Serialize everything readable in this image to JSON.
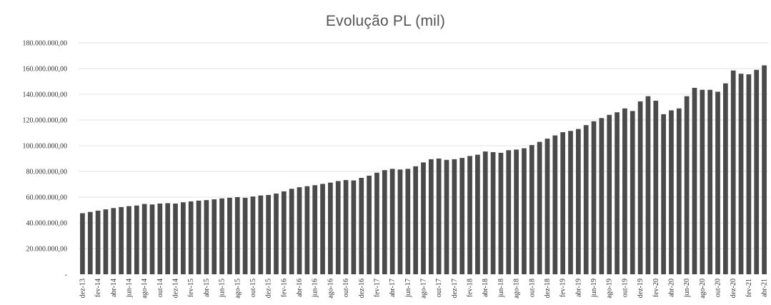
{
  "chart_data": {
    "type": "bar",
    "title": "Evolução PL (mil)",
    "xlabel": "",
    "ylabel": "",
    "ylim": [
      0,
      180000000
    ],
    "grid": true,
    "legend": "none",
    "bar_color": "#4a4a4a",
    "y_tick_values": [
      0,
      20000000,
      40000000,
      60000000,
      80000000,
      100000000,
      120000000,
      140000000,
      160000000,
      180000000
    ],
    "y_tick_labels": [
      "-",
      "20.000.000,00",
      "40.000.000,00",
      "60.000.000,00",
      "80.000.000,00",
      "100.000.000,00",
      "120.000.000,00",
      "140.000.000,00",
      "160.000.000,00",
      "180.000.000,00"
    ],
    "x_tick_labels": [
      "dez-13",
      "fev-14",
      "abr-14",
      "jun-14",
      "ago-14",
      "out-14",
      "dez-14",
      "fev-15",
      "abr-15",
      "jun-15",
      "ago-15",
      "out-15",
      "dez-15",
      "fev-16",
      "abr-16",
      "jun-16",
      "ago-16",
      "out-16",
      "dez-16",
      "fev-17",
      "abr-17",
      "jun-17",
      "ago-17",
      "out-17",
      "dez-17",
      "fev-18",
      "abr-18",
      "jun-18",
      "ago-18",
      "out-18",
      "dez-18",
      "fev-19",
      "abr-19",
      "jun-19",
      "ago-19",
      "out-19",
      "dez-19",
      "fev-20",
      "abr-20",
      "jun-20",
      "ago-20",
      "out-20",
      "dez-20",
      "fev-21",
      "abr-21"
    ],
    "categories": [
      "dez-13",
      "jan-14",
      "fev-14",
      "mar-14",
      "abr-14",
      "mai-14",
      "jun-14",
      "jul-14",
      "ago-14",
      "set-14",
      "out-14",
      "nov-14",
      "dez-14",
      "jan-15",
      "fev-15",
      "mar-15",
      "abr-15",
      "mai-15",
      "jun-15",
      "jul-15",
      "ago-15",
      "set-15",
      "out-15",
      "nov-15",
      "dez-15",
      "jan-16",
      "fev-16",
      "mar-16",
      "abr-16",
      "mai-16",
      "jun-16",
      "jul-16",
      "ago-16",
      "set-16",
      "out-16",
      "nov-16",
      "dez-16",
      "jan-17",
      "fev-17",
      "mar-17",
      "abr-17",
      "mai-17",
      "jun-17",
      "jul-17",
      "ago-17",
      "set-17",
      "out-17",
      "nov-17",
      "dez-17",
      "jan-18",
      "fev-18",
      "mar-18",
      "abr-18",
      "mai-18",
      "jun-18",
      "jul-18",
      "ago-18",
      "set-18",
      "out-18",
      "nov-18",
      "dez-18",
      "jan-19",
      "fev-19",
      "mar-19",
      "abr-19",
      "mai-19",
      "jun-19",
      "jul-19",
      "ago-19",
      "set-19",
      "out-19",
      "nov-19",
      "dez-19",
      "jan-20",
      "fev-20",
      "mar-20",
      "abr-20",
      "mai-20",
      "jun-20",
      "jul-20",
      "ago-20",
      "set-20",
      "out-20",
      "nov-20",
      "dez-20",
      "jan-21",
      "fev-21",
      "mar-21",
      "abr-21"
    ],
    "values": [
      47500000,
      48500000,
      49500000,
      50500000,
      51500000,
      52300000,
      53000000,
      53500000,
      54700000,
      54300000,
      55000000,
      55300000,
      55000000,
      56000000,
      56700000,
      57300000,
      57700000,
      58300000,
      59000000,
      59500000,
      60000000,
      59500000,
      60500000,
      61300000,
      61700000,
      62800000,
      64500000,
      66500000,
      67700000,
      68500000,
      69300000,
      70300000,
      71300000,
      72500000,
      73300000,
      73000000,
      75000000,
      76700000,
      79000000,
      81000000,
      82000000,
      81500000,
      82000000,
      84000000,
      87000000,
      89500000,
      90000000,
      89000000,
      89500000,
      90500000,
      92000000,
      93000000,
      95500000,
      95000000,
      94500000,
      96500000,
      97000000,
      98000000,
      100500000,
      103000000,
      105500000,
      108000000,
      110500000,
      111500000,
      113000000,
      116000000,
      119000000,
      121500000,
      124000000,
      126000000,
      129000000,
      127000000,
      134500000,
      138500000,
      135000000,
      124500000,
      127500000,
      129000000,
      138500000,
      145000000,
      143500000,
      143500000,
      142000000,
      148500000,
      158500000,
      156000000,
      155500000,
      159000000,
      162500000
    ]
  }
}
